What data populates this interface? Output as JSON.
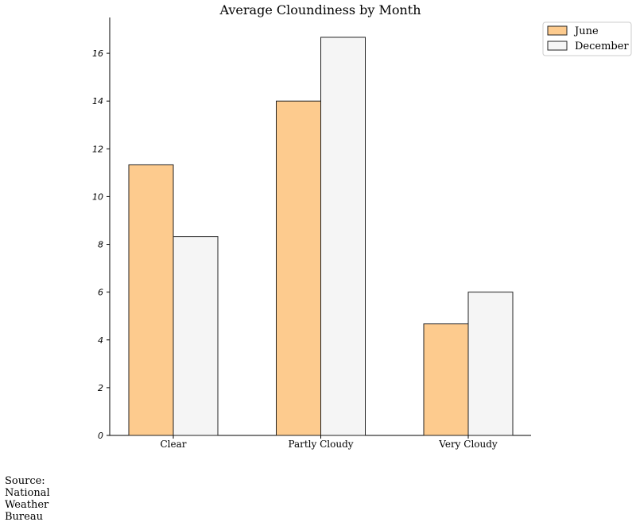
{
  "chart_data": {
    "type": "bar",
    "title": "Average Cloundiness by Month",
    "xlabel": "",
    "ylabel": "",
    "categories": [
      "Clear",
      "Partly Cloudy",
      "Very Cloudy"
    ],
    "series": [
      {
        "name": "June",
        "values": [
          11.33,
          14.0,
          4.67
        ],
        "color": "#fdcb8e"
      },
      {
        "name": "December",
        "values": [
          8.33,
          16.67,
          6.0
        ],
        "color": "#f5f5f5"
      }
    ],
    "ylim": [
      0,
      17.5
    ],
    "yticks": [
      "0",
      "2",
      "4",
      "6",
      "8",
      "10",
      "12",
      "14",
      "16"
    ],
    "grid": false,
    "legend_position": "top-right"
  },
  "source_note": "Source:\nNational\nWeather\nBureau"
}
